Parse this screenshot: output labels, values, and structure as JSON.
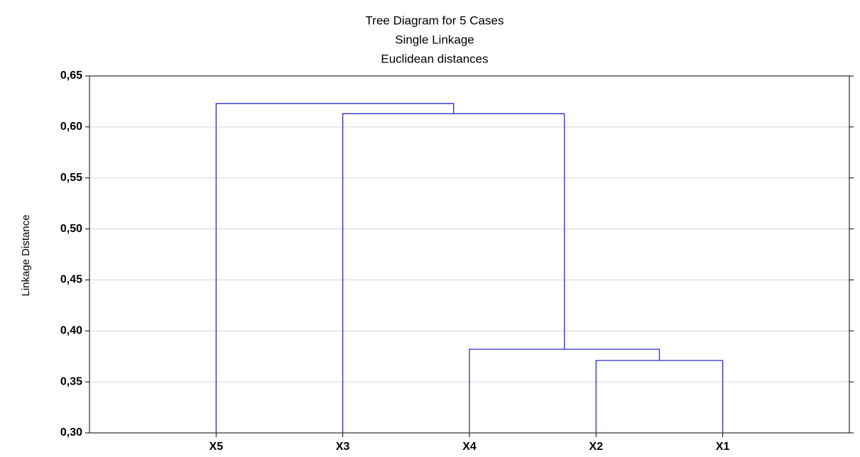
{
  "chart_data": {
    "type": "dendrogram",
    "title": "Tree Diagram for 5 Cases",
    "subtitle": [
      "Single Linkage",
      "Euclidean distances"
    ],
    "ylabel": "Linkage Distance",
    "categories": [
      "X5",
      "X3",
      "X4",
      "X2",
      "X1"
    ],
    "merges": [
      {
        "join": [
          "X2",
          "X1"
        ],
        "height": 0.371
      },
      {
        "join": [
          "X4",
          "X2"
        ],
        "height": 0.382
      },
      {
        "join": [
          "X3",
          "X4"
        ],
        "height": 0.613
      },
      {
        "join": [
          "X5",
          "X3"
        ],
        "height": 0.623
      }
    ],
    "color": "#2b2bd6",
    "ylim": [
      0.3,
      0.65
    ],
    "yticks": [
      {
        "value": 0.3,
        "label": "0,30"
      },
      {
        "value": 0.35,
        "label": "0,35"
      },
      {
        "value": 0.4,
        "label": "0,40"
      },
      {
        "value": 0.45,
        "label": "0,45"
      },
      {
        "value": 0.5,
        "label": "0,50"
      },
      {
        "value": 0.55,
        "label": "0,55"
      },
      {
        "value": 0.6,
        "label": "0,60"
      },
      {
        "value": 0.65,
        "label": "0,65"
      }
    ],
    "grid": true
  }
}
